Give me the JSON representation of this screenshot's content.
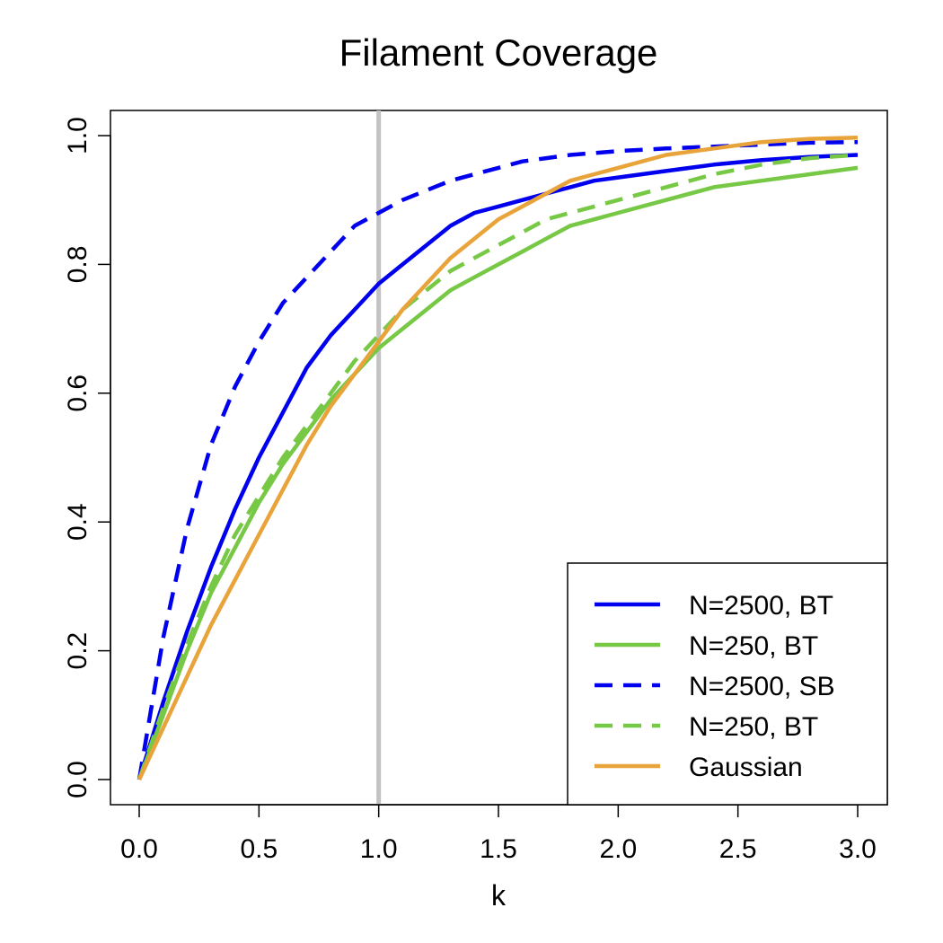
{
  "chart_data": {
    "type": "line",
    "title": "Filament Coverage",
    "xlabel": "k",
    "ylabel": "",
    "xlim": [
      0,
      3
    ],
    "ylim": [
      0,
      1
    ],
    "xticks": [
      0,
      0.5,
      1,
      1.5,
      2,
      2.5,
      3
    ],
    "yticks": [
      0,
      0.2,
      0.4,
      0.6,
      0.8,
      1
    ],
    "x_tick_labels": [
      "0.0",
      "0.5",
      "1.0",
      "1.5",
      "2.0",
      "2.5",
      "3.0"
    ],
    "y_tick_labels": [
      "0.0",
      "0.2",
      "0.4",
      "0.6",
      "0.8",
      "1.0"
    ],
    "vertical_reference": {
      "x": 1,
      "color": "#c2c2c2"
    },
    "grid": false,
    "legend_position": "bottom-right",
    "series": [
      {
        "name": "N=2500, BT",
        "style": "solid",
        "color": "#0000ee",
        "x": [
          0,
          0.1,
          0.2,
          0.3,
          0.4,
          0.5,
          0.6,
          0.7,
          0.8,
          0.9,
          1.0,
          1.1,
          1.2,
          1.3,
          1.4,
          1.5,
          1.6,
          1.7,
          1.8,
          1.9,
          2.0,
          2.2,
          2.4,
          2.6,
          2.8,
          3.0
        ],
        "values": [
          0,
          0.12,
          0.23,
          0.33,
          0.42,
          0.5,
          0.57,
          0.64,
          0.69,
          0.73,
          0.77,
          0.8,
          0.83,
          0.86,
          0.88,
          0.89,
          0.9,
          0.91,
          0.92,
          0.93,
          0.935,
          0.945,
          0.955,
          0.962,
          0.967,
          0.97
        ]
      },
      {
        "name": "N=250, BT",
        "style": "solid",
        "color": "#76c845",
        "x": [
          0,
          0.1,
          0.2,
          0.3,
          0.4,
          0.5,
          0.6,
          0.7,
          0.8,
          0.9,
          1.0,
          1.1,
          1.2,
          1.3,
          1.4,
          1.5,
          1.6,
          1.7,
          1.8,
          1.9,
          2.0,
          2.2,
          2.4,
          2.6,
          2.8,
          3.0
        ],
        "values": [
          0,
          0.1,
          0.2,
          0.29,
          0.36,
          0.43,
          0.49,
          0.54,
          0.59,
          0.63,
          0.67,
          0.7,
          0.73,
          0.76,
          0.78,
          0.8,
          0.82,
          0.84,
          0.86,
          0.87,
          0.88,
          0.9,
          0.92,
          0.93,
          0.94,
          0.95
        ]
      },
      {
        "name": "N=2500, SB",
        "style": "dashed",
        "color": "#0000ee",
        "x": [
          0,
          0.1,
          0.2,
          0.3,
          0.4,
          0.5,
          0.6,
          0.7,
          0.8,
          0.9,
          1.0,
          1.1,
          1.2,
          1.3,
          1.4,
          1.5,
          1.6,
          1.7,
          1.8,
          1.9,
          2.0,
          2.2,
          2.4,
          2.6,
          2.8,
          3.0
        ],
        "values": [
          0,
          0.22,
          0.39,
          0.52,
          0.61,
          0.68,
          0.74,
          0.78,
          0.82,
          0.86,
          0.88,
          0.9,
          0.915,
          0.93,
          0.94,
          0.95,
          0.96,
          0.965,
          0.97,
          0.973,
          0.976,
          0.98,
          0.983,
          0.986,
          0.989,
          0.99
        ]
      },
      {
        "name": "N=250, BT",
        "style": "dashed",
        "color": "#76c845",
        "x": [
          0,
          0.1,
          0.2,
          0.3,
          0.4,
          0.5,
          0.6,
          0.7,
          0.8,
          0.9,
          1.0,
          1.1,
          1.2,
          1.3,
          1.4,
          1.5,
          1.6,
          1.7,
          1.8,
          1.9,
          2.0,
          2.2,
          2.4,
          2.6,
          2.8,
          3.0
        ],
        "values": [
          0,
          0.11,
          0.21,
          0.3,
          0.38,
          0.44,
          0.5,
          0.55,
          0.6,
          0.65,
          0.69,
          0.73,
          0.76,
          0.79,
          0.81,
          0.83,
          0.85,
          0.87,
          0.88,
          0.89,
          0.9,
          0.92,
          0.94,
          0.955,
          0.965,
          0.97
        ]
      },
      {
        "name": "Gaussian",
        "style": "solid",
        "color": "#e8a43a",
        "x": [
          0,
          0.1,
          0.2,
          0.3,
          0.4,
          0.5,
          0.6,
          0.7,
          0.8,
          0.9,
          1.0,
          1.1,
          1.2,
          1.3,
          1.4,
          1.5,
          1.6,
          1.7,
          1.8,
          1.9,
          2.0,
          2.2,
          2.4,
          2.6,
          2.8,
          3.0
        ],
        "values": [
          0,
          0.08,
          0.16,
          0.24,
          0.31,
          0.38,
          0.45,
          0.52,
          0.58,
          0.63,
          0.68,
          0.73,
          0.77,
          0.81,
          0.84,
          0.87,
          0.89,
          0.91,
          0.93,
          0.94,
          0.95,
          0.97,
          0.98,
          0.99,
          0.995,
          0.997
        ]
      }
    ]
  }
}
